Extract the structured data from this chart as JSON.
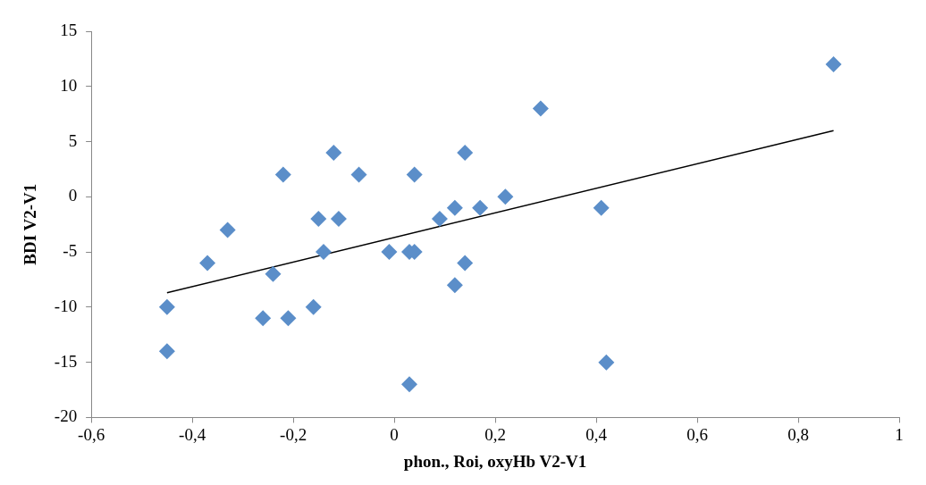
{
  "chart_data": {
    "type": "scatter",
    "xlabel": "phon., Roi, oxyHb V2-V1",
    "ylabel": "BDI V2-V1",
    "xlim": [
      -0.6,
      1
    ],
    "xticks": [
      {
        "value": -0.6,
        "label": "-0,6"
      },
      {
        "value": -0.4,
        "label": "-0,4"
      },
      {
        "value": -0.2,
        "label": "-0,2"
      },
      0,
      {
        "value": 0.2,
        "label": "0,2"
      },
      {
        "value": 0.4,
        "label": "0,4"
      },
      {
        "value": 0.6,
        "label": "0,6"
      },
      {
        "value": 0.8,
        "label": "0,8"
      },
      1
    ],
    "ylim": [
      -20,
      15
    ],
    "yticks": [
      -20,
      -15,
      -10,
      -5,
      0,
      5,
      10,
      15
    ],
    "grid": false,
    "legend": false,
    "series": [
      {
        "color": "#5b8ec9",
        "marker": "diamond",
        "x": [
          -0.45,
          -0.45,
          -0.37,
          -0.33,
          -0.22,
          -0.24,
          -0.26,
          -0.21,
          -0.16,
          -0.15,
          -0.14,
          -0.12,
          -0.11,
          -0.07,
          -0.01,
          0.03,
          0.04,
          0.03,
          0.04,
          0.09,
          0.12,
          0.12,
          0.14,
          0.14,
          0.17,
          0.22,
          0.29,
          0.41,
          0.42,
          0.87
        ],
        "values": [
          -10,
          -14,
          -6,
          -3,
          2,
          -7,
          -11,
          -11,
          -10,
          -2,
          -5,
          4,
          -2,
          2,
          -5,
          -5,
          -5,
          -17,
          2,
          -2,
          -1,
          -8,
          4,
          -6,
          -1,
          0,
          8,
          -1,
          -15,
          12
        ]
      },
      {
        "type": "line",
        "color": "#000000",
        "marker": "none",
        "line_style": "solid",
        "x": [
          -0.45,
          0.87
        ],
        "values": [
          -8.7,
          6
        ]
      }
    ]
  }
}
